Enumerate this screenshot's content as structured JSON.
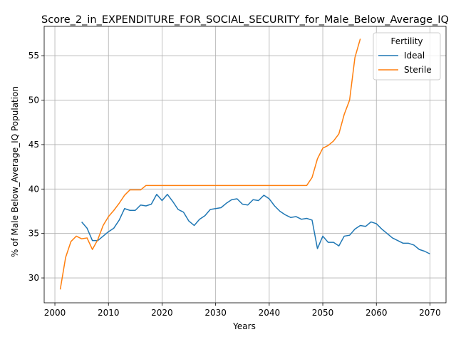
{
  "chart_data": {
    "type": "line",
    "title": "Score_2_in_EXPENDITURE_FOR_SOCIAL_SECURITY_for_Male_Below_Average_IQ",
    "xlabel": "Years",
    "ylabel": "% of Male Below_Average_IQ Population",
    "xlim": [
      1998,
      2073
    ],
    "ylim": [
      27.2,
      58.3
    ],
    "xticks": [
      2000,
      2010,
      2020,
      2030,
      2040,
      2050,
      2060,
      2070
    ],
    "yticks": [
      30,
      35,
      40,
      45,
      50,
      55
    ],
    "grid": true,
    "legend": {
      "title": "Fertility",
      "position": "top-right"
    },
    "series": [
      {
        "name": "Ideal",
        "color": "#1f77b4",
        "x": [
          2005,
          2006,
          2007,
          2008,
          2009,
          2010,
          2011,
          2012,
          2013,
          2014,
          2015,
          2016,
          2017,
          2018,
          2019,
          2020,
          2021,
          2022,
          2023,
          2024,
          2025,
          2026,
          2027,
          2028,
          2029,
          2030,
          2031,
          2032,
          2033,
          2034,
          2035,
          2036,
          2037,
          2038,
          2039,
          2040,
          2041,
          2042,
          2043,
          2044,
          2045,
          2046,
          2047,
          2048,
          2049,
          2050,
          2051,
          2052,
          2053,
          2054,
          2055,
          2056,
          2057,
          2058,
          2059,
          2060,
          2061,
          2062,
          2063,
          2064,
          2065,
          2066,
          2067,
          2068,
          2069,
          2070
        ],
        "values": [
          36.3,
          35.6,
          34.2,
          34.2,
          34.7,
          35.2,
          35.6,
          36.5,
          37.8,
          37.6,
          37.6,
          38.2,
          38.1,
          38.3,
          39.4,
          38.7,
          39.4,
          38.6,
          37.7,
          37.4,
          36.4,
          35.9,
          36.6,
          37.0,
          37.7,
          37.8,
          37.9,
          38.4,
          38.8,
          38.9,
          38.3,
          38.2,
          38.8,
          38.7,
          39.3,
          38.9,
          38.1,
          37.5,
          37.1,
          36.8,
          36.9,
          36.6,
          36.7,
          36.5,
          33.3,
          34.7,
          34.0,
          34.0,
          33.6,
          34.7,
          34.8,
          35.5,
          35.9,
          35.8,
          36.3,
          36.1,
          35.5,
          35.0,
          34.5,
          34.2,
          33.9,
          33.9,
          33.7,
          33.2,
          33.0,
          32.7
        ]
      },
      {
        "name": "Sterile",
        "color": "#ff7f0e",
        "x": [
          2001,
          2002,
          2003,
          2004,
          2005,
          2006,
          2007,
          2008,
          2009,
          2010,
          2011,
          2012,
          2013,
          2014,
          2015,
          2016,
          2017,
          2018,
          2019,
          2020,
          2021,
          2022,
          2023,
          2024,
          2025,
          2026,
          2027,
          2028,
          2029,
          2030,
          2031,
          2032,
          2033,
          2034,
          2035,
          2036,
          2037,
          2038,
          2039,
          2040,
          2041,
          2042,
          2043,
          2044,
          2045,
          2046,
          2047,
          2048,
          2049,
          2050,
          2051,
          2052,
          2053,
          2054,
          2055,
          2056,
          2057
        ],
        "values": [
          28.7,
          32.3,
          34.1,
          34.7,
          34.4,
          34.5,
          33.2,
          34.3,
          35.9,
          36.9,
          37.6,
          38.4,
          39.3,
          39.9,
          39.9,
          39.9,
          40.4,
          40.4,
          40.4,
          40.4,
          40.4,
          40.4,
          40.4,
          40.4,
          40.4,
          40.4,
          40.4,
          40.4,
          40.4,
          40.4,
          40.4,
          40.4,
          40.4,
          40.4,
          40.4,
          40.4,
          40.4,
          40.4,
          40.4,
          40.4,
          40.4,
          40.4,
          40.4,
          40.4,
          40.4,
          40.4,
          40.4,
          41.3,
          43.4,
          44.6,
          44.9,
          45.4,
          46.2,
          48.4,
          50.0,
          54.8,
          56.9
        ]
      }
    ]
  }
}
